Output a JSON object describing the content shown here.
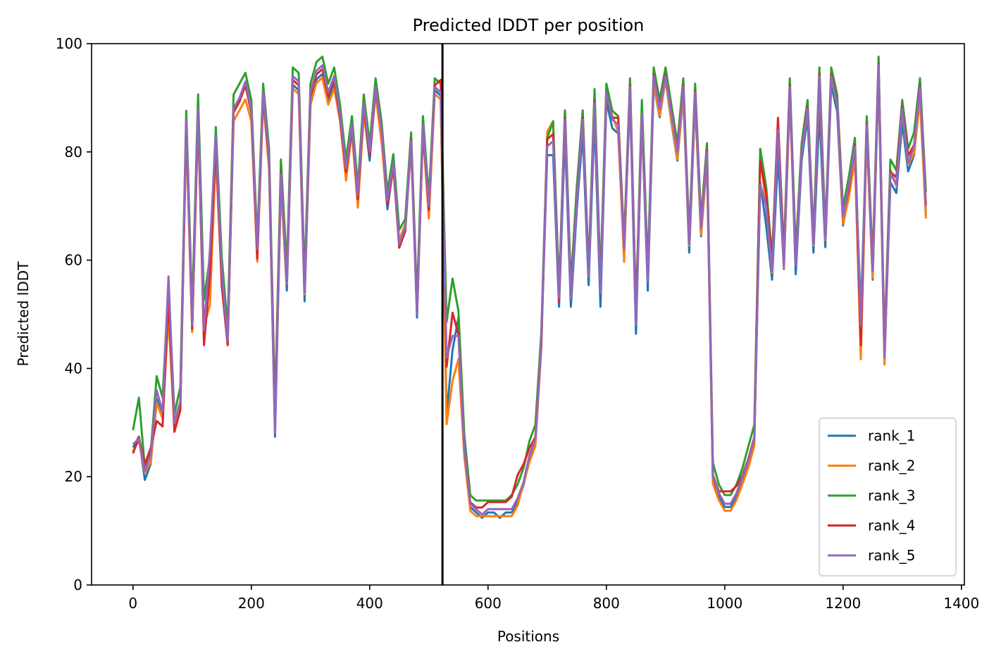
{
  "chart_data": {
    "type": "line",
    "title": "Predicted lDDT per position",
    "xlabel": "Positions",
    "ylabel": "Predicted lDDT",
    "xlim": [
      -70,
      1405
    ],
    "ylim": [
      0,
      100
    ],
    "x_ticks": [
      0,
      200,
      400,
      600,
      800,
      1000,
      1200,
      1400
    ],
    "y_ticks": [
      0,
      20,
      40,
      60,
      80,
      100
    ],
    "grid": false,
    "legend_position": "lower-right",
    "vline_x": 523,
    "x": [
      0,
      10,
      20,
      30,
      40,
      50,
      60,
      70,
      80,
      90,
      100,
      110,
      120,
      130,
      140,
      150,
      160,
      170,
      180,
      190,
      200,
      210,
      220,
      230,
      240,
      250,
      260,
      270,
      280,
      290,
      300,
      310,
      320,
      330,
      340,
      350,
      360,
      370,
      380,
      390,
      400,
      410,
      420,
      430,
      440,
      450,
      460,
      470,
      480,
      490,
      500,
      510,
      520,
      530,
      540,
      550,
      560,
      570,
      580,
      590,
      600,
      610,
      620,
      630,
      640,
      650,
      660,
      670,
      680,
      690,
      700,
      710,
      720,
      730,
      740,
      750,
      760,
      770,
      780,
      790,
      800,
      810,
      820,
      830,
      840,
      850,
      860,
      870,
      880,
      890,
      900,
      910,
      920,
      930,
      940,
      950,
      960,
      970,
      980,
      990,
      1000,
      1010,
      1020,
      1030,
      1040,
      1050,
      1060,
      1070,
      1080,
      1090,
      1100,
      1110,
      1120,
      1130,
      1140,
      1150,
      1160,
      1170,
      1180,
      1190,
      1200,
      1210,
      1220,
      1230,
      1240,
      1250,
      1260,
      1270,
      1280,
      1290,
      1300,
      1310,
      1320,
      1330,
      1340
    ],
    "series": [
      {
        "name": "rank_1",
        "color": "#1f77b4",
        "offset": -0.6,
        "values": [
          26,
          28,
          20,
          23,
          35,
          32,
          56,
          30,
          34,
          86,
          48,
          88,
          46,
          60,
          82,
          58,
          45,
          88,
          90,
          93,
          88,
          62,
          91,
          78,
          28,
          75,
          55,
          93,
          92,
          53,
          90,
          94,
          95,
          90,
          93,
          87,
          77,
          85,
          72,
          88,
          79,
          92,
          83,
          70,
          78,
          63,
          66,
          82,
          50,
          85,
          70,
          92,
          91,
          32,
          44,
          50,
          25,
          15,
          14,
          13,
          14,
          14,
          13,
          14,
          14,
          16,
          19,
          24,
          27,
          45,
          80,
          80,
          52,
          84,
          52,
          70,
          84,
          56,
          87,
          52,
          90,
          85,
          84,
          62,
          91,
          47,
          87,
          55,
          93,
          87,
          94,
          86,
          79,
          91,
          62,
          90,
          65,
          79,
          20,
          17,
          15,
          15,
          17,
          20,
          23,
          27,
          75,
          67,
          57,
          80,
          59,
          92,
          58,
          79,
          87,
          62,
          88,
          63,
          93,
          88,
          67,
          73,
          80,
          51,
          84,
          57,
          95,
          42,
          75,
          73,
          86,
          77,
          80,
          91,
          69
        ]
      },
      {
        "name": "rank_2",
        "color": "#ff7f0e",
        "offset": -0.3,
        "values": [
          25,
          27,
          21,
          23,
          34,
          31,
          50,
          29,
          33,
          84,
          47,
          86,
          48,
          52,
          80,
          56,
          45,
          86,
          88,
          90,
          86,
          60,
          90,
          77,
          30,
          74,
          56,
          92,
          91,
          54,
          89,
          93,
          94,
          89,
          92,
          86,
          75,
          84,
          70,
          87,
          80,
          91,
          82,
          71,
          77,
          64,
          67,
          81,
          51,
          84,
          68,
          91,
          90,
          30,
          38,
          42,
          24,
          14,
          13,
          13,
          13,
          13,
          13,
          13,
          13,
          15,
          19,
          23,
          26,
          44,
          84,
          86,
          54,
          88,
          54,
          72,
          88,
          58,
          90,
          55,
          91,
          87,
          84,
          60,
          93,
          50,
          86,
          57,
          93,
          87,
          94,
          86,
          79,
          91,
          63,
          90,
          65,
          79,
          19,
          16,
          14,
          14,
          16,
          19,
          22,
          26,
          80,
          70,
          58,
          86,
          59,
          90,
          60,
          80,
          88,
          63,
          93,
          64,
          94,
          89,
          67,
          72,
          79,
          42,
          84,
          57,
          96,
          41,
          77,
          74,
          88,
          78,
          80,
          90,
          68
        ]
      },
      {
        "name": "rank_3",
        "color": "#2ca02c",
        "offset": 0.6,
        "values": [
          28,
          34,
          21,
          24,
          38,
          34,
          55,
          31,
          36,
          87,
          50,
          90,
          52,
          60,
          84,
          60,
          47,
          90,
          92,
          94,
          89,
          63,
          92,
          80,
          32,
          78,
          58,
          95,
          94,
          56,
          92,
          96,
          97,
          92,
          95,
          88,
          78,
          86,
          73,
          90,
          81,
          93,
          85,
          72,
          79,
          65,
          67,
          83,
          52,
          86,
          71,
          93,
          92,
          48,
          56,
          50,
          27,
          16,
          15,
          15,
          15,
          15,
          15,
          15,
          16,
          18,
          21,
          26,
          29,
          46,
          82,
          85,
          54,
          87,
          55,
          73,
          87,
          58,
          91,
          56,
          92,
          87,
          86,
          63,
          93,
          50,
          89,
          58,
          95,
          89,
          95,
          88,
          81,
          93,
          64,
          92,
          67,
          81,
          22,
          18,
          16,
          16,
          18,
          21,
          25,
          29,
          80,
          73,
          60,
          85,
          61,
          93,
          61,
          81,
          89,
          64,
          95,
          65,
          95,
          90,
          69,
          75,
          82,
          47,
          86,
          59,
          97,
          44,
          78,
          76,
          89,
          80,
          83,
          93,
          72
        ]
      },
      {
        "name": "rank_4",
        "color": "#d62728",
        "offset": 0.3,
        "values": [
          24,
          27,
          22,
          25,
          30,
          29,
          53,
          28,
          32,
          85,
          47,
          87,
          44,
          57,
          81,
          55,
          44,
          87,
          89,
          92,
          87,
          60,
          90,
          78,
          30,
          76,
          56,
          93,
          92,
          54,
          90,
          94,
          95,
          90,
          93,
          86,
          76,
          84,
          71,
          88,
          79,
          91,
          84,
          70,
          77,
          62,
          65,
          82,
          50,
          84,
          69,
          92,
          93,
          40,
          50,
          46,
          25,
          15,
          14,
          14,
          15,
          15,
          15,
          15,
          16,
          20,
          22,
          25,
          27,
          44,
          82,
          83,
          52,
          86,
          53,
          71,
          86,
          57,
          89,
          54,
          90,
          86,
          86,
          62,
          92,
          50,
          86,
          56,
          94,
          88,
          94,
          87,
          80,
          92,
          63,
          91,
          66,
          80,
          20,
          17,
          17,
          17,
          18,
          20,
          23,
          27,
          78,
          72,
          59,
          86,
          60,
          92,
          59,
          80,
          88,
          63,
          94,
          64,
          94,
          89,
          68,
          73,
          81,
          44,
          85,
          58,
          96,
          43,
          76,
          75,
          88,
          79,
          81,
          92,
          70
        ]
      },
      {
        "name": "rank_5",
        "color": "#9467bd",
        "offset": 0.0,
        "values": [
          26,
          27,
          21,
          24,
          36,
          32,
          57,
          30,
          34,
          86,
          48,
          88,
          47,
          62,
          83,
          58,
          45,
          88,
          90,
          93,
          88,
          62,
          91,
          79,
          28,
          76,
          56,
          94,
          93,
          54,
          91,
          95,
          96,
          91,
          94,
          87,
          77,
          85,
          72,
          89,
          80,
          92,
          84,
          71,
          78,
          63,
          66,
          82,
          50,
          85,
          70,
          92,
          91,
          42,
          46,
          46,
          25,
          15,
          14,
          13,
          14,
          14,
          14,
          14,
          14,
          16,
          19,
          24,
          27,
          45,
          81,
          82,
          53,
          86,
          53,
          71,
          86,
          57,
          89,
          54,
          91,
          86,
          85,
          62,
          92,
          48,
          87,
          56,
          94,
          88,
          94,
          87,
          80,
          92,
          63,
          91,
          66,
          80,
          20,
          17,
          15,
          15,
          17,
          20,
          23,
          27,
          74,
          70,
          58,
          84,
          59,
          92,
          59,
          80,
          88,
          63,
          94,
          64,
          94,
          89,
          68,
          74,
          81,
          48,
          85,
          58,
          96,
          42,
          76,
          74,
          88,
          78,
          81,
          92,
          70
        ]
      }
    ]
  }
}
